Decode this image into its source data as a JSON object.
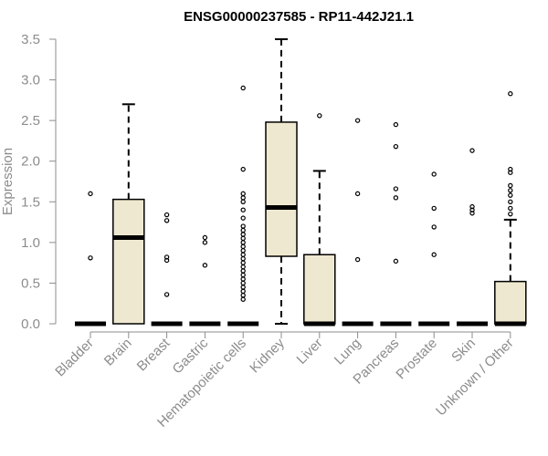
{
  "chart_data": {
    "type": "boxplot",
    "title": "ENSG00000237585 - RP11-442J21.1",
    "xlabel": "",
    "ylabel": "Expression",
    "ylim": [
      0,
      3.5
    ],
    "yticks": [
      0.0,
      0.5,
      1.0,
      1.5,
      2.0,
      2.5,
      3.0,
      3.5
    ],
    "ytick_labels": [
      "0.0",
      "0.5",
      "1.0",
      "1.5",
      "2.0",
      "2.5",
      "3.0",
      "3.5"
    ],
    "box_color": "#efe8d0",
    "categories": [
      "Bladder",
      "Brain",
      "Breast",
      "Gastric",
      "Hematopoietic cells",
      "Kidney",
      "Liver",
      "Lung",
      "Pancreas",
      "Prostate",
      "Skin",
      "Unknown / Other"
    ],
    "boxes": [
      {
        "category": "Bladder",
        "q1": 0,
        "median": 0,
        "q3": 0,
        "whisker_low": 0,
        "whisker_high": 0,
        "outliers": [
          0.81,
          1.6
        ]
      },
      {
        "category": "Brain",
        "q1": 0,
        "median": 1.06,
        "q3": 1.53,
        "whisker_low": 0,
        "whisker_high": 2.7,
        "outliers": []
      },
      {
        "category": "Breast",
        "q1": 0,
        "median": 0,
        "q3": 0,
        "whisker_low": 0,
        "whisker_high": 0,
        "outliers": [
          0.36,
          0.78,
          0.82,
          1.27,
          1.34
        ]
      },
      {
        "category": "Gastric",
        "q1": 0,
        "median": 0,
        "q3": 0,
        "whisker_low": 0,
        "whisker_high": 0,
        "outliers": [
          0.72,
          1.0,
          1.06
        ]
      },
      {
        "category": "Hematopoietic cells",
        "q1": 0,
        "median": 0,
        "q3": 0,
        "whisker_low": 0,
        "whisker_high": 0,
        "outliers": [
          0.3,
          0.35,
          0.4,
          0.45,
          0.5,
          0.55,
          0.6,
          0.65,
          0.7,
          0.75,
          0.8,
          0.85,
          0.9,
          0.95,
          1.0,
          1.05,
          1.1,
          1.15,
          1.2,
          1.3,
          1.4,
          1.5,
          1.55,
          1.6,
          1.9,
          2.9
        ]
      },
      {
        "category": "Kidney",
        "q1": 0.83,
        "median": 1.43,
        "q3": 2.48,
        "whisker_low": 0,
        "whisker_high": 3.5,
        "outliers": []
      },
      {
        "category": "Liver",
        "q1": 0,
        "median": 0,
        "q3": 0.85,
        "whisker_low": 0,
        "whisker_high": 1.88,
        "outliers": [
          2.56
        ]
      },
      {
        "category": "Lung",
        "q1": 0,
        "median": 0,
        "q3": 0,
        "whisker_low": 0,
        "whisker_high": 0,
        "outliers": [
          0.79,
          1.6,
          2.5
        ]
      },
      {
        "category": "Pancreas",
        "q1": 0,
        "median": 0,
        "q3": 0,
        "whisker_low": 0,
        "whisker_high": 0,
        "outliers": [
          0.77,
          1.55,
          1.66,
          2.18,
          2.45
        ]
      },
      {
        "category": "Prostate",
        "q1": 0,
        "median": 0,
        "q3": 0,
        "whisker_low": 0,
        "whisker_high": 0,
        "outliers": [
          0.85,
          1.19,
          1.42,
          1.84
        ]
      },
      {
        "category": "Skin",
        "q1": 0,
        "median": 0,
        "q3": 0,
        "whisker_low": 0,
        "whisker_high": 0,
        "outliers": [
          1.36,
          1.4,
          1.44,
          2.13
        ]
      },
      {
        "category": "Unknown / Other",
        "q1": 0,
        "median": 0,
        "q3": 0.52,
        "whisker_low": 0,
        "whisker_high": 1.28,
        "outliers": [
          1.35,
          1.42,
          1.5,
          1.58,
          1.64,
          1.7,
          1.86,
          1.9,
          2.83
        ]
      }
    ]
  }
}
